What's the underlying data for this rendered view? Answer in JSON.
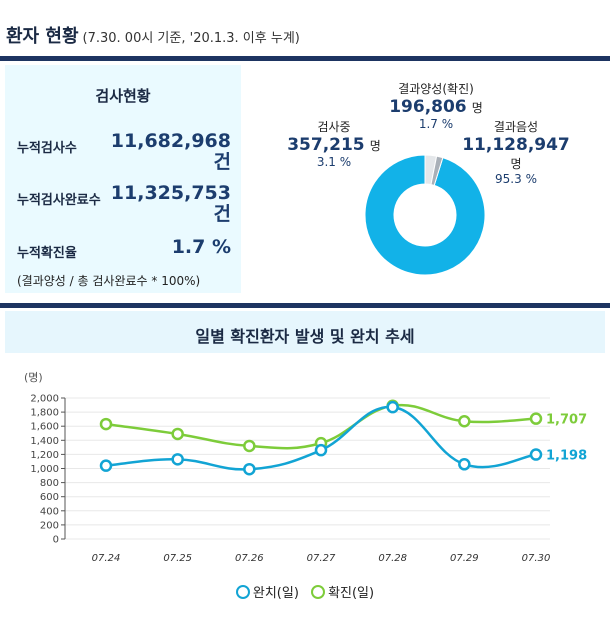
{
  "header": {
    "title": "환자 현황",
    "subtitle": "(7.30. 00시 기준, '20.1.3. 이후 누계)"
  },
  "stats": {
    "heading": "검사현황",
    "rows": [
      {
        "label": "누적검사수",
        "value": "11,682,968",
        "unit": "건"
      },
      {
        "label": "누적검사완료수",
        "value": "11,325,753",
        "unit": "건"
      },
      {
        "label": "누적확진율",
        "value": "1.7 %"
      }
    ],
    "note": "(결과양성 / 총 검사완료수 * 100%)"
  },
  "donut": {
    "segments": [
      {
        "name": "결과음성",
        "value": "11,128,947",
        "unit": "명",
        "percent": "95.3 %",
        "share": 95.3,
        "color": "#12b2e8"
      },
      {
        "name": "검사중",
        "value": "357,215",
        "unit": "명",
        "percent": "3.1 %",
        "share": 3.1,
        "color": "#e4e7ea"
      },
      {
        "name": "결과양성(확진)",
        "value": "196,806",
        "unit": "명",
        "percent": "1.7 %",
        "share": 1.7,
        "color": "#a9b0b8"
      }
    ]
  },
  "trend": {
    "title": "일별 확진환자 발생 및 완치 추세"
  },
  "chart_data": {
    "type": "line",
    "ylabel": "(명)",
    "ylim": [
      0,
      2000
    ],
    "yticks": [
      "0",
      "200",
      "400",
      "600",
      "800",
      "1,000",
      "1,200",
      "1,400",
      "1,600",
      "1,800",
      "2,000"
    ],
    "categories": [
      "07.24",
      "07.25",
      "07.26",
      "07.27",
      "07.28",
      "07.29",
      "07.30"
    ],
    "series": [
      {
        "name": "완치(일)",
        "color": "#12a4d4",
        "values": [
          1040,
          1130,
          990,
          1260,
          1870,
          1060,
          1198
        ],
        "end_label": "1,198"
      },
      {
        "name": "확진(일)",
        "color": "#7dcc3a",
        "values": [
          1630,
          1490,
          1320,
          1360,
          1890,
          1670,
          1707
        ],
        "end_label": "1,707"
      }
    ],
    "grid": true,
    "legend_position": "bottom"
  }
}
